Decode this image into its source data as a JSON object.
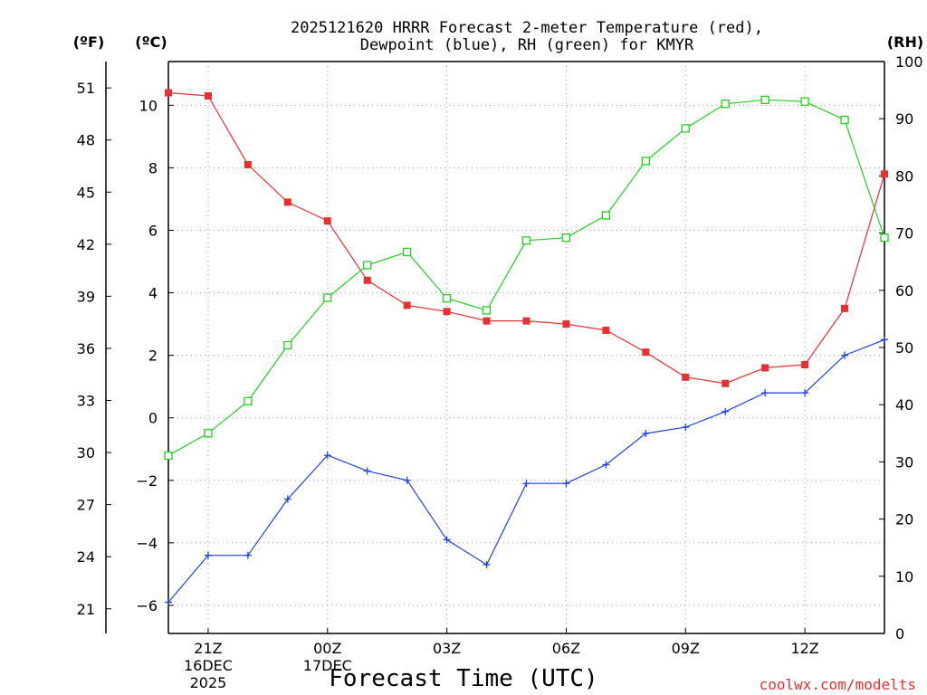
{
  "chart_data": {
    "type": "line",
    "title_line1": "2025121620 HRRR Forecast 2-meter Temperature (red),",
    "title_line2": "Dewpoint (blue), RH (green) for KMYR",
    "xlabel": "Forecast Time (UTC)",
    "credit": "coolwx.com/modelts",
    "units": {
      "f": "(ºF)",
      "c": "(ºC)",
      "rh": "(RH)"
    },
    "x": [
      0,
      1,
      2,
      3,
      4,
      5,
      6,
      7,
      8,
      9,
      10,
      11,
      12,
      13,
      14,
      15,
      16,
      17,
      18
    ],
    "xlim": [
      0,
      18
    ],
    "x_ticks": [
      {
        "x": 1,
        "lines": [
          "21Z",
          "16DEC",
          "2025"
        ]
      },
      {
        "x": 4,
        "lines": [
          "00Z",
          "17DEC"
        ]
      },
      {
        "x": 7,
        "lines": [
          "03Z"
        ]
      },
      {
        "x": 10,
        "lines": [
          "06Z"
        ]
      },
      {
        "x": 13,
        "lines": [
          "09Z"
        ]
      },
      {
        "x": 16,
        "lines": [
          "12Z"
        ]
      }
    ],
    "ylim_c": [
      -6.9,
      11.4
    ],
    "y_ticks_c": [
      -6,
      -4,
      -2,
      0,
      2,
      4,
      6,
      8,
      10
    ],
    "y_ticks_f": [
      21,
      24,
      27,
      30,
      33,
      36,
      39,
      42,
      45,
      48,
      51
    ],
    "ylim_rh": [
      0,
      100
    ],
    "y_ticks_rh": [
      0,
      10,
      20,
      30,
      40,
      50,
      60,
      70,
      80,
      90,
      100
    ],
    "series": [
      {
        "name": "Temperature",
        "axis": "c",
        "color": "#e83030",
        "marker": "filled-square",
        "values": [
          10.4,
          10.3,
          8.1,
          6.9,
          6.3,
          4.4,
          3.6,
          3.4,
          3.1,
          3.1,
          3.0,
          2.8,
          2.1,
          1.3,
          1.1,
          1.6,
          1.7,
          3.5,
          7.8
        ]
      },
      {
        "name": "Dewpoint",
        "axis": "c",
        "color": "#2040e0",
        "marker": "plus",
        "values": [
          -5.9,
          -4.4,
          -4.4,
          -2.6,
          -1.2,
          -1.7,
          -2.0,
          -3.9,
          -4.7,
          -2.1,
          -2.1,
          -1.5,
          -0.5,
          -0.3,
          0.2,
          0.8,
          0.8,
          2.0,
          2.5
        ]
      },
      {
        "name": "RH",
        "axis": "rh",
        "color": "#20d020",
        "marker": "open-square",
        "values": [
          31.1,
          35.0,
          40.6,
          50.4,
          58.7,
          64.4,
          66.7,
          58.6,
          56.5,
          68.7,
          69.2,
          73.1,
          82.6,
          88.3,
          92.6,
          93.3,
          93.0,
          89.8,
          69.2
        ]
      }
    ]
  }
}
